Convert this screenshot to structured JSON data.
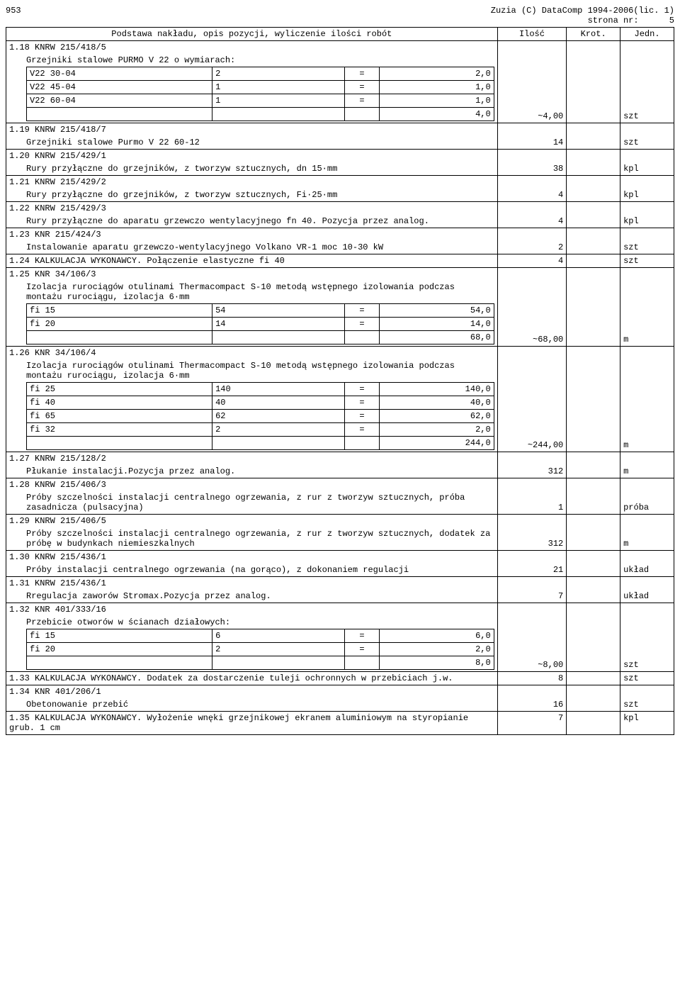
{
  "header": {
    "doc_num": "953",
    "app_line": "Zuzia (C) DataComp 1994-2006(lic. 1)",
    "page_label": "strona nr:",
    "page_num": "5"
  },
  "table_header": {
    "desc": "Podstawa nakładu, opis pozycji, wyliczenie ilości robót",
    "ilosc": "Ilość",
    "krot": "Krot.",
    "jedn": "Jedn."
  },
  "rows": [
    {
      "id": "r118",
      "code": "1.18 KNRW 215/418/5",
      "desc": "Grzejniki stalowe PURMO V 22 o wymiarach:",
      "calcs": [
        {
          "label": "V22 30-04",
          "n": "2",
          "eq": "=",
          "v": "2,0"
        },
        {
          "label": "V22 45-04",
          "n": "1",
          "eq": "=",
          "v": "1,0"
        },
        {
          "label": "V22 60-04",
          "n": "1",
          "eq": "=",
          "v": "1,0"
        }
      ],
      "sum": "4,0",
      "ilosc": "~4,00",
      "jedn": "szt"
    },
    {
      "id": "r119",
      "code": "1.19 KNRW 215/418/7",
      "desc": "Grzejniki stalowe Purmo V 22 60-12",
      "ilosc": "14",
      "jedn": "szt"
    },
    {
      "id": "r120",
      "code": "1.20 KNRW 215/429/1",
      "desc": "Rury przyłączne do grzejników, z tworzyw sztucznych, dn 15·mm",
      "ilosc": "38",
      "jedn": "kpl"
    },
    {
      "id": "r121",
      "code": "1.21 KNRW 215/429/2",
      "desc": "Rury przyłączne do grzejników, z tworzyw sztucznych, Fi·25·mm",
      "ilosc": "4",
      "jedn": "kpl"
    },
    {
      "id": "r122",
      "code": "1.22 KNRW 215/429/3",
      "desc": "Rury przyłączne do aparatu grzewczo wentylacyjnego fn 40. Pozycja przez analog.",
      "ilosc": "4",
      "jedn": "kpl"
    },
    {
      "id": "r123",
      "code": "1.23 KNR 215/424/3",
      "desc": "Instalowanie aparatu grzewczo-wentylacyjnego Volkano VR-1 moc 10-30 kW",
      "ilosc": "2",
      "jedn": "szt"
    },
    {
      "id": "r124",
      "code": "1.24 KALKULACJA WYKONAWCY. Połączenie elastyczne fi 40",
      "ilosc": "4",
      "jedn": "szt"
    },
    {
      "id": "r125",
      "code": "1.25 KNR 34/106/3",
      "desc": "Izolacja rurociągów otulinami Thermacompact S-10 metodą wstępnego izolowania podczas montażu rurociągu, izolacja 6·mm",
      "calcs": [
        {
          "label": "fi 15",
          "n": "54",
          "eq": "=",
          "v": "54,0"
        },
        {
          "label": "fi 20",
          "n": "14",
          "eq": "=",
          "v": "14,0"
        }
      ],
      "sum": "68,0",
      "ilosc": "~68,00",
      "jedn": "m"
    },
    {
      "id": "r126",
      "code": "1.26 KNR 34/106/4",
      "desc": "Izolacja rurociągów otulinami Thermacompact S-10 metodą wstępnego izolowania podczas montażu rurociągu, izolacja 6·mm",
      "calcs": [
        {
          "label": "fi 25",
          "n": "140",
          "eq": "=",
          "v": "140,0"
        },
        {
          "label": "fi 40",
          "n": "40",
          "eq": "=",
          "v": "40,0"
        },
        {
          "label": "fi 65",
          "n": "62",
          "eq": "=",
          "v": "62,0"
        },
        {
          "label": "fi 32",
          "n": "2",
          "eq": "=",
          "v": "2,0"
        }
      ],
      "sum": "244,0",
      "ilosc": "~244,00",
      "jedn": "m"
    },
    {
      "id": "r127",
      "code": "1.27 KNRW 215/128/2",
      "desc": "Płukanie instalacji.Pozycja przez analog.",
      "ilosc": "312",
      "jedn": "m"
    },
    {
      "id": "r128",
      "code": "1.28 KNRW 215/406/3",
      "desc": "Próby szczelności instalacji centralnego ogrzewania, z rur z tworzyw sztucznych, próba zasadnicza (pulsacyjna)",
      "ilosc": "1",
      "jedn": "próba"
    },
    {
      "id": "r129",
      "code": "1.29 KNRW 215/406/5",
      "desc": "Próby szczelności instalacji centralnego ogrzewania, z rur z tworzyw sztucznych, dodatek za próbę w budynkach niemieszkalnych",
      "ilosc": "312",
      "jedn": "m"
    },
    {
      "id": "r130",
      "code": "1.30 KNRW 215/436/1",
      "desc": "Próby instalacji centralnego ogrzewania (na gorąco), z dokonaniem regulacji",
      "ilosc": "21",
      "jedn": "układ"
    },
    {
      "id": "r131",
      "code": "1.31 KNRW 215/436/1",
      "desc": "Rregulacja zaworów Stromax.Pozycja przez analog.",
      "ilosc": "7",
      "jedn": "układ"
    },
    {
      "id": "r132",
      "code": "1.32 KNR 401/333/16",
      "desc": "Przebicie otworów w ścianach działowych:",
      "calcs": [
        {
          "label": "fi 15",
          "n": "6",
          "eq": "=",
          "v": "6,0"
        },
        {
          "label": "fi 20",
          "n": "2",
          "eq": "=",
          "v": "2,0"
        }
      ],
      "sum": "8,0",
      "ilosc": "~8,00",
      "jedn": "szt"
    },
    {
      "id": "r133",
      "code": "1.33 KALKULACJA WYKONAWCY. Dodatek za dostarczenie tuleji ochronnych w przebiciach j.w.",
      "ilosc": "8",
      "jedn": "szt"
    },
    {
      "id": "r134",
      "code": "1.34 KNR 401/206/1",
      "desc": "Obetonowanie przebić",
      "ilosc": "16",
      "jedn": "szt"
    },
    {
      "id": "r135",
      "code": "1.35 KALKULACJA WYKONAWCY. Wyłożenie wnęki grzejnikowej ekranem aluminiowym na styropianie grub. 1 cm",
      "ilosc": "7",
      "jedn": "kpl"
    }
  ]
}
